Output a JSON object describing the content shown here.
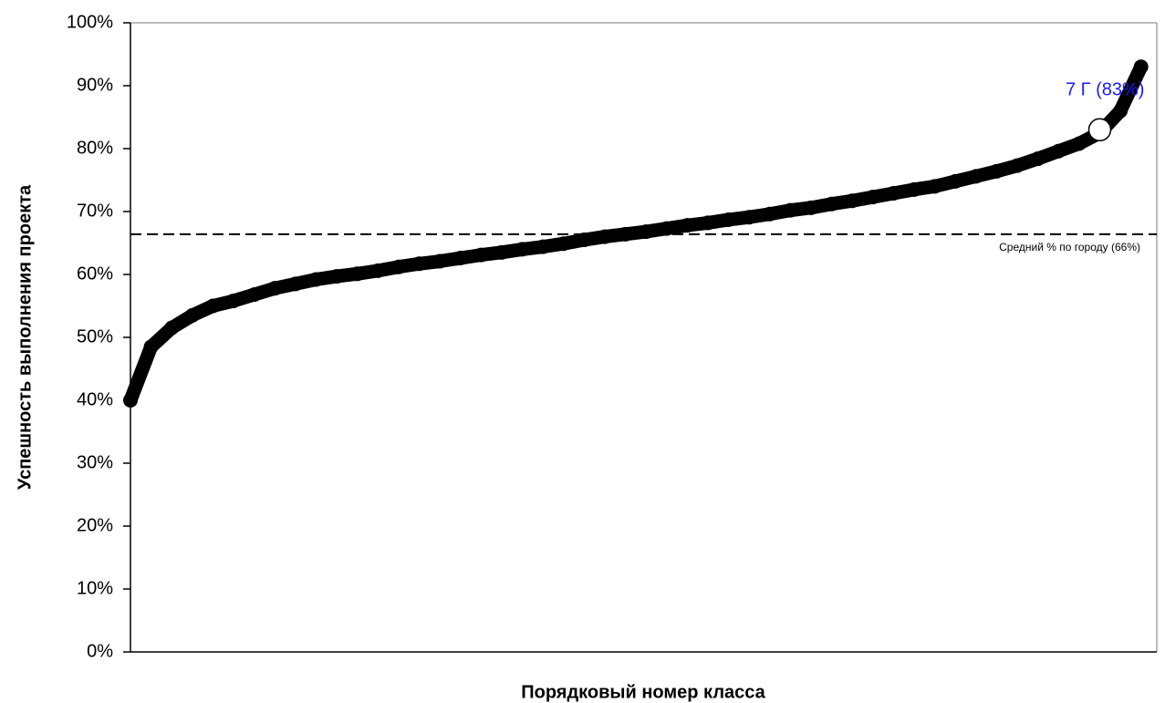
{
  "chart_data": {
    "type": "scatter",
    "x_label": "Порядковый номер класса",
    "y_label": "Успешность выполнения проекта",
    "x": [
      1,
      2,
      3,
      4,
      5,
      6,
      7,
      8,
      9,
      10,
      11,
      12,
      13,
      14,
      15,
      16,
      17,
      18,
      19,
      20,
      21,
      22,
      23,
      24,
      25,
      26,
      27,
      28,
      29,
      30,
      31,
      32,
      33,
      34,
      35,
      36,
      37,
      38,
      39,
      40,
      41,
      42,
      43,
      44,
      45,
      46,
      47,
      48,
      49,
      50
    ],
    "series": [
      {
        "color": "#000000",
        "values": [
          40,
          48.5,
          51.5,
          53.5,
          55,
          55.8,
          56.8,
          57.8,
          58.5,
          59.2,
          59.7,
          60.1,
          60.6,
          61.2,
          61.7,
          62.1,
          62.6,
          63.1,
          63.5,
          64,
          64.4,
          64.9,
          65.5,
          66,
          66.4,
          66.8,
          67.3,
          67.8,
          68.2,
          68.7,
          69.1,
          69.6,
          70.2,
          70.6,
          71.2,
          71.7,
          72.3,
          72.9,
          73.5,
          74,
          74.8,
          75.6,
          76.4,
          77.3,
          78.4,
          79.6,
          80.8,
          82.5,
          86,
          93
        ]
      }
    ],
    "highlight": {
      "x": 48,
      "value": 83,
      "label": "7 Г (83%)",
      "color": "#1a1aff"
    },
    "reference_line": {
      "value": 66.4,
      "label": "Средний % по городу (66%)"
    },
    "xlim": [
      1,
      50.5
    ],
    "ylim": [
      0,
      100
    ],
    "yticks": [
      {
        "value": 0,
        "label": "0%"
      },
      {
        "value": 10,
        "label": "10%"
      },
      {
        "value": 20,
        "label": "20%"
      },
      {
        "value": 30,
        "label": "30%"
      },
      {
        "value": 40,
        "label": "40%"
      },
      {
        "value": 50,
        "label": "50%"
      },
      {
        "value": 60,
        "label": "60%"
      },
      {
        "value": 70,
        "label": "70%"
      },
      {
        "value": 80,
        "label": "80%"
      },
      {
        "value": 90,
        "label": "90%"
      },
      {
        "value": 100,
        "label": "100%"
      }
    ]
  }
}
